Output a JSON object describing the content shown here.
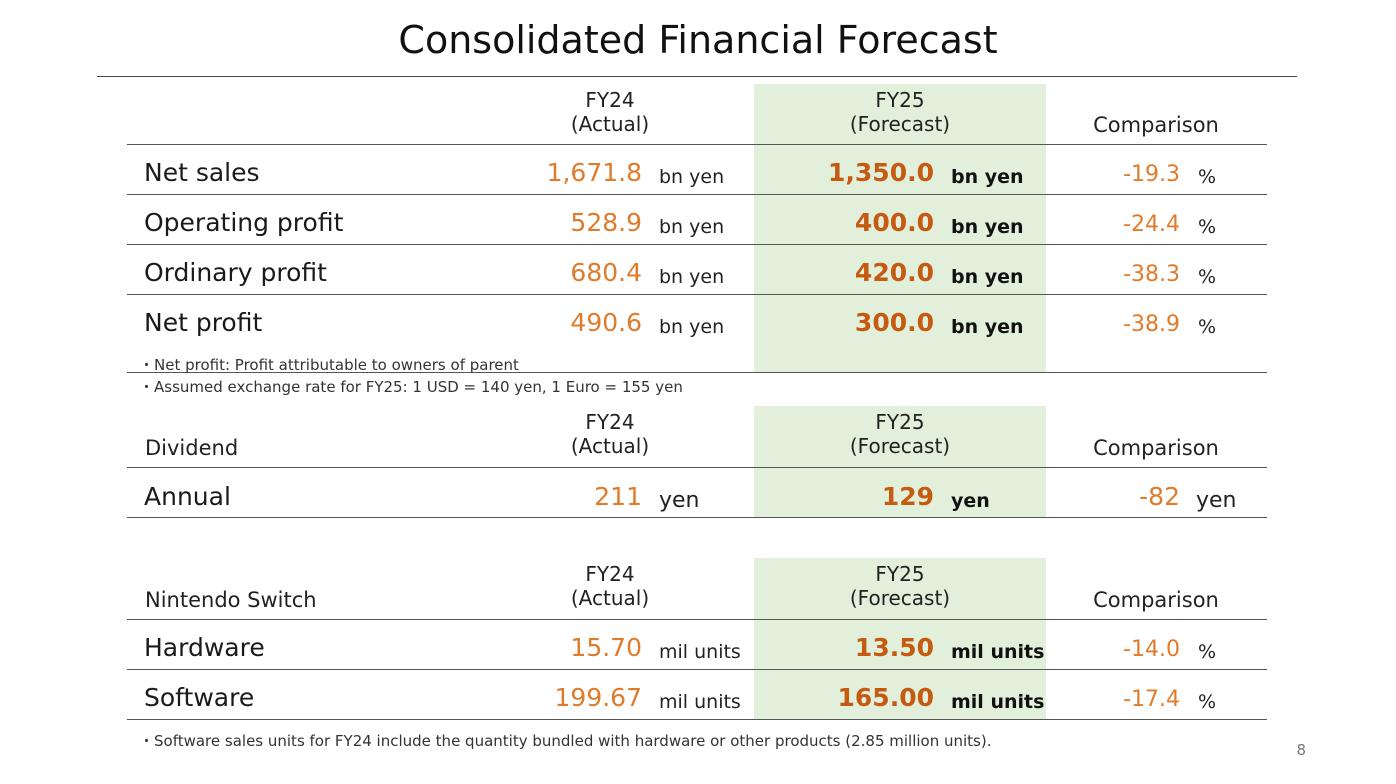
{
  "title": "Consolidated Financial Forecast",
  "columns": {
    "fy24_line1": "FY24",
    "fy24_line2": "(Actual)",
    "fy25_line1": "FY25",
    "fy25_line2": "(Forecast)",
    "comparison": "Comparison"
  },
  "financial": {
    "rows": [
      {
        "label": "Net sales",
        "fy24": "1,671.8",
        "fy24_unit": "bn yen",
        "fy25": "1,350.0",
        "fy25_unit": "bn yen",
        "cmp": "-19.3",
        "cmp_unit": "%"
      },
      {
        "label": "Operating profit",
        "fy24": "528.9",
        "fy24_unit": "bn yen",
        "fy25": "400.0",
        "fy25_unit": "bn yen",
        "cmp": "-24.4",
        "cmp_unit": "%"
      },
      {
        "label": "Ordinary profit",
        "fy24": "680.4",
        "fy24_unit": "bn yen",
        "fy25": "420.0",
        "fy25_unit": "bn yen",
        "cmp": "-38.3",
        "cmp_unit": "%"
      },
      {
        "label": "Net profit",
        "fy24": "490.6",
        "fy24_unit": "bn yen",
        "fy25": "300.0",
        "fy25_unit": "bn yen",
        "cmp": "-38.9",
        "cmp_unit": "%"
      }
    ],
    "notes": [
      "・Net profit: Profit attributable to owners of parent",
      "・Assumed exchange rate for FY25: 1 USD = 140 yen, 1 Euro = 155 yen"
    ]
  },
  "dividend": {
    "section_label": "Dividend",
    "row": {
      "label": "Annual",
      "fy24": "211",
      "fy24_unit": "yen",
      "fy25": "129",
      "fy25_unit": "yen",
      "cmp": "-82",
      "cmp_unit": "yen"
    }
  },
  "switch": {
    "section_label": "Nintendo Switch",
    "rows": [
      {
        "label": "Hardware",
        "fy24": "15.70",
        "fy24_unit": "mil units",
        "fy25": "13.50",
        "fy25_unit": "mil units",
        "cmp": "-14.0",
        "cmp_unit": "%"
      },
      {
        "label": "Software",
        "fy24": "199.67",
        "fy24_unit": "mil units",
        "fy25": "165.00",
        "fy25_unit": "mil units",
        "cmp": "-17.4",
        "cmp_unit": "%"
      }
    ],
    "note": "・Software sales units for FY24 include the quantity bundled with hardware or other products (2.85 million units)."
  },
  "page_number": "8",
  "colors": {
    "actual_value": "#e07b2c",
    "forecast_value": "#c55a11",
    "forecast_highlight": "#e2efda"
  }
}
